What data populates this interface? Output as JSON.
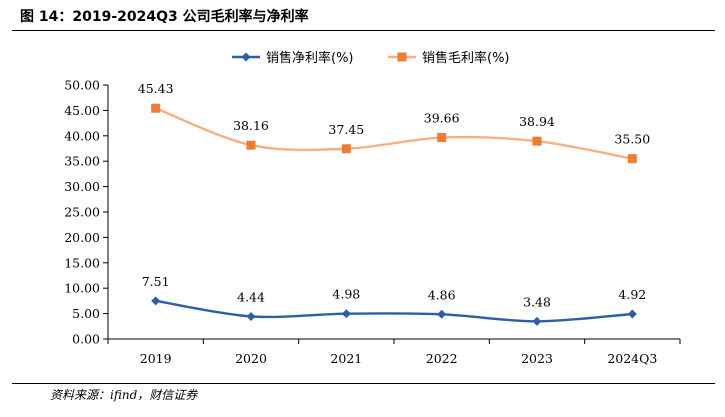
{
  "figure_title": "图 14：2019-2024Q3 公司毛利率与净利率",
  "source_note": "资料来源：ifind，财信证券",
  "chart_data": {
    "type": "line",
    "categories": [
      "2019",
      "2020",
      "2021",
      "2022",
      "2023",
      "2024Q3"
    ],
    "series": [
      {
        "name": "销售净利率(%)",
        "color": "#2d5fa8",
        "marker": "diamond",
        "values": [
          7.51,
          4.44,
          4.98,
          4.86,
          3.48,
          4.92
        ]
      },
      {
        "name": "销售毛利率(%)",
        "color": "#ed7d31",
        "line_color": "#f4b183",
        "marker": "square",
        "values": [
          45.43,
          38.16,
          37.45,
          39.66,
          38.94,
          35.5
        ]
      }
    ],
    "ylim": [
      0,
      50
    ],
    "yticks": [
      "0.00",
      "5.00",
      "10.00",
      "15.00",
      "20.00",
      "25.00",
      "30.00",
      "35.00",
      "40.00",
      "45.00",
      "50.00"
    ],
    "value_labels": [
      [
        "7.51",
        "4.44",
        "4.98",
        "4.86",
        "3.48",
        "4.92"
      ],
      [
        "45.43",
        "38.16",
        "37.45",
        "39.66",
        "38.94",
        "35.50"
      ]
    ],
    "legend_position": "top-center",
    "grid": false
  }
}
